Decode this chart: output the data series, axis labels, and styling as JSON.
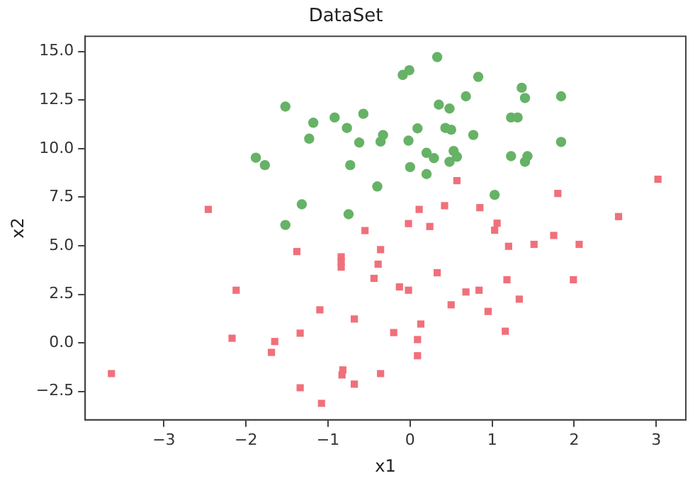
{
  "chart_data": {
    "type": "scatter",
    "title": "DataSet",
    "xlabel": "x1",
    "ylabel": "x2",
    "grid": false,
    "legend": false,
    "xlim": [
      -3.96,
      3.36
    ],
    "ylim": [
      -3.96,
      15.78
    ],
    "xticks": [
      {
        "value": -3,
        "label": "−3"
      },
      {
        "value": -2,
        "label": "−2"
      },
      {
        "value": -1,
        "label": "−1"
      },
      0,
      1,
      2,
      3
    ],
    "yticks": [
      {
        "value": -2.5,
        "label": "−2.5"
      },
      {
        "value": 0,
        "label": "0.0"
      },
      {
        "value": 2.5,
        "label": "2.5"
      },
      {
        "value": 5,
        "label": "5.0"
      },
      {
        "value": 7.5,
        "label": "7.5"
      },
      {
        "value": 10,
        "label": "10.0"
      },
      {
        "value": 12.5,
        "label": "12.5"
      },
      {
        "value": 15,
        "label": "15.0"
      }
    ],
    "series": [
      {
        "color": "#66b266",
        "marker": "circle",
        "x": [
          -1.52,
          -1.18,
          -0.94,
          -0.92,
          -0.77,
          -0.57,
          -1.23,
          -0.62,
          -0.36,
          -1.88,
          -1.77,
          -0.73,
          -0.4,
          -1.32,
          -0.75,
          -1.52,
          0.33,
          -0.09,
          -0.01,
          0.83,
          1.36,
          1.4,
          1.84,
          0.68,
          0.36,
          0.35,
          0.48,
          1.23,
          1.31,
          -0.33,
          0.09,
          0.43,
          0.5,
          0.77,
          -0.02,
          1.84,
          0.2,
          0.29,
          0.53,
          0.57,
          0.48,
          1.23,
          1.43,
          1.4,
          0,
          0.2,
          1.03
        ],
        "values": [
          12.16,
          11.33,
          null,
          11.6,
          11.06,
          11.79,
          10.51,
          10.31,
          10.36,
          9.53,
          9.15,
          9.15,
          8.05,
          7.13,
          6.62,
          6.07,
          14.71,
          13.79,
          14.03,
          13.69,
          13.13,
          12.6,
          12.69,
          12.69,
          null,
          12.26,
          12.06,
          11.6,
          11.6,
          10.7,
          11.04,
          11.06,
          10.97,
          10.7,
          10.41,
          10.34,
          9.78,
          9.51,
          9.88,
          9.58,
          9.32,
          9.61,
          9.61,
          9.32,
          9.05,
          8.69,
          7.62
        ]
      },
      {
        "color": "#f0707a",
        "marker": "square",
        "x": [
          -2.46,
          -0.55,
          0.57,
          3.02,
          1.8,
          0.11,
          0.42,
          0.85,
          -0.02,
          0.24,
          1.06,
          1.03,
          2.54,
          1.75,
          -1.38,
          -0.84,
          -0.84,
          -0.84,
          -0.36,
          -0.39,
          -0.44,
          -2.12,
          -1.1,
          -0.68,
          -2.17,
          -1.65,
          -1.69,
          -1.34,
          -3.64,
          -0.82,
          -0.83,
          -1.34,
          -0.68,
          -1.08,
          -0.36,
          1.51,
          1.2,
          2.06,
          0.33,
          -0.13,
          -0.02,
          0.68,
          0.84,
          1.18,
          1.99,
          0.5,
          1.33,
          0.95,
          0.13,
          -0.2,
          0.09,
          0.09,
          1.16
        ],
        "values": [
          6.87,
          5.78,
          8.35,
          8.42,
          7.69,
          6.87,
          7.06,
          6.96,
          6.14,
          5.99,
          6.16,
          5.8,
          6.5,
          5.53,
          4.7,
          4.43,
          4.17,
          3.9,
          4.8,
          4.05,
          3.32,
          2.71,
          1.7,
          1.23,
          0.24,
          0.07,
          -0.49,
          0.5,
          -1.58,
          -1.39,
          -1.65,
          -2.31,
          -2.12,
          -3.11,
          -1.58,
          5.07,
          4.97,
          5.07,
          3.61,
          2.88,
          2.71,
          2.62,
          2.71,
          3.25,
          3.25,
          1.96,
          2.25,
          1.62,
          0.97,
          0.53,
          0.17,
          -0.66,
          0.6
        ]
      }
    ]
  }
}
